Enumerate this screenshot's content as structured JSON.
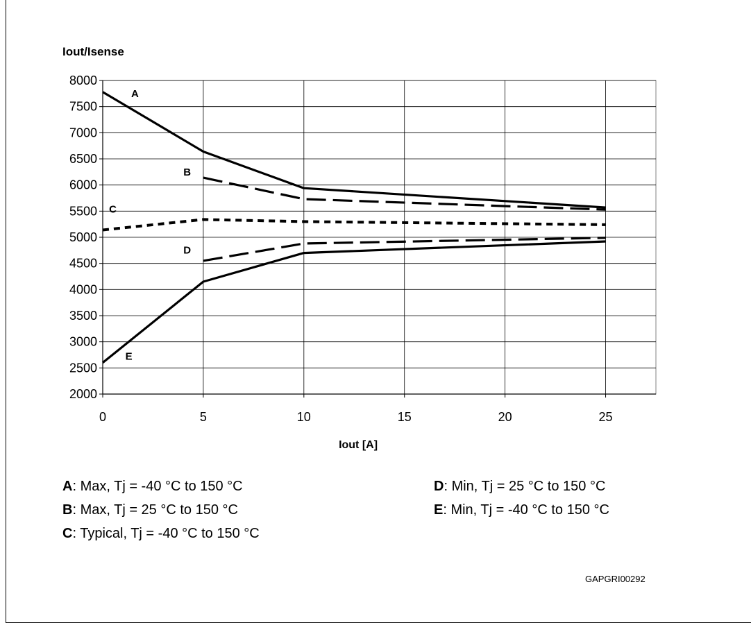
{
  "chart_data": {
    "type": "line",
    "ylabel": "Iout/Isense",
    "xlabel": "Iout [A]",
    "xlim": [
      0,
      27.5
    ],
    "ylim": [
      2000,
      8000
    ],
    "x_ticks": [
      0,
      5,
      10,
      15,
      20,
      25
    ],
    "y_ticks": [
      2000,
      2500,
      3000,
      3500,
      4000,
      4500,
      5000,
      5500,
      6000,
      6500,
      7000,
      7500,
      8000
    ],
    "grid": true,
    "series": [
      {
        "name": "A",
        "style": "solid",
        "x": [
          0,
          5,
          10,
          25
        ],
        "y": [
          7780,
          6640,
          5940,
          5570
        ]
      },
      {
        "name": "B",
        "style": "dashed",
        "x": [
          5,
          10,
          25
        ],
        "y": [
          6140,
          5730,
          5530
        ]
      },
      {
        "name": "C",
        "style": "dotted",
        "x": [
          0,
          5,
          10,
          25
        ],
        "y": [
          5140,
          5340,
          5300,
          5240
        ]
      },
      {
        "name": "D",
        "style": "dashed",
        "x": [
          5,
          10,
          25
        ],
        "y": [
          4550,
          4880,
          4990
        ]
      },
      {
        "name": "E",
        "style": "solid",
        "x": [
          0,
          5,
          10,
          25
        ],
        "y": [
          2600,
          4150,
          4700,
          4920
        ]
      }
    ],
    "curve_labels": [
      {
        "text": "A",
        "x": 1.6,
        "y": 7680
      },
      {
        "text": "B",
        "x": 4.2,
        "y": 6180
      },
      {
        "text": "C",
        "x": 0.5,
        "y": 5470
      },
      {
        "text": "D",
        "x": 4.2,
        "y": 4690
      },
      {
        "text": "E",
        "x": 1.3,
        "y": 2660
      }
    ]
  },
  "legend": [
    {
      "key": "A",
      "text": ": Max, Tj = -40 °C to 150 °C"
    },
    {
      "key": "B",
      "text": ": Max, Tj = 25 °C to 150 °C"
    },
    {
      "key": "C",
      "text": ": Typical, Tj = -40 °C to 150 °C"
    },
    {
      "key": "D",
      "text": ": Min, Tj = 25 °C to 150 °C"
    },
    {
      "key": "E",
      "text": ": Min, Tj = -40 °C to 150 °C"
    }
  ],
  "figure_code": "GAPGRI00292"
}
